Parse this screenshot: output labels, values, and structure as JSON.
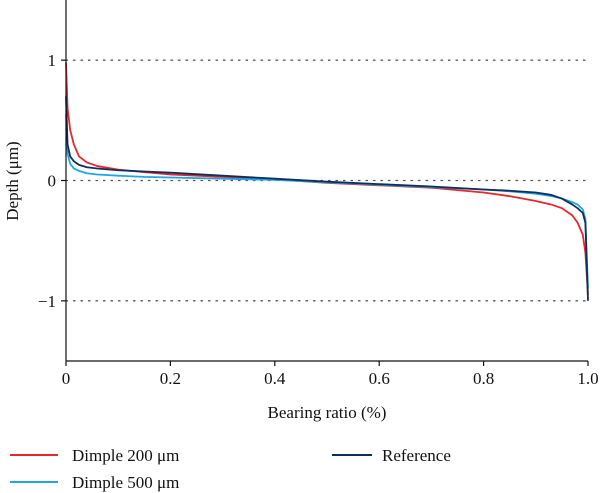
{
  "chart_data": {
    "type": "line",
    "title": "",
    "xlabel": "Bearing ratio (%)",
    "ylabel": "Depth (μm)",
    "xlim": [
      0,
      1
    ],
    "ylim": [
      -1.5,
      1.5
    ],
    "x_ticks": [
      0,
      0.2,
      0.4,
      0.6,
      0.8,
      1.0
    ],
    "x_tick_labels": [
      "0",
      "0.2",
      "0.4",
      "0.6",
      "0.8",
      "1.0"
    ],
    "y_ticks": [
      1,
      0,
      -1
    ],
    "y_tick_labels": [
      "1",
      "0",
      "−1"
    ],
    "reference_lines": [
      1,
      0,
      -1
    ],
    "reference_line_style": "dotted",
    "legend_position": "bottom",
    "series": [
      {
        "name": "Dimple 200 μm",
        "color": "#e8262b",
        "x": [
          0,
          0.003,
          0.008,
          0.015,
          0.025,
          0.04,
          0.06,
          0.1,
          0.15,
          0.2,
          0.3,
          0.4,
          0.5,
          0.6,
          0.7,
          0.8,
          0.85,
          0.9,
          0.93,
          0.95,
          0.97,
          0.98,
          0.99,
          0.995,
          1.0
        ],
        "y": [
          0.98,
          0.6,
          0.42,
          0.3,
          0.2,
          0.15,
          0.12,
          0.09,
          0.07,
          0.05,
          0.03,
          0.01,
          -0.02,
          -0.04,
          -0.06,
          -0.1,
          -0.13,
          -0.17,
          -0.2,
          -0.23,
          -0.29,
          -0.35,
          -0.45,
          -0.6,
          -0.95
        ]
      },
      {
        "name": "Dimple 500 μm",
        "color": "#1ea7e4",
        "x": [
          0,
          0.003,
          0.008,
          0.015,
          0.025,
          0.04,
          0.06,
          0.1,
          0.15,
          0.2,
          0.3,
          0.4,
          0.5,
          0.6,
          0.7,
          0.8,
          0.85,
          0.9,
          0.93,
          0.95,
          0.97,
          0.98,
          0.99,
          0.995,
          1.0
        ],
        "y": [
          0.55,
          0.22,
          0.14,
          0.1,
          0.08,
          0.06,
          0.05,
          0.04,
          0.03,
          0.025,
          0.015,
          0.005,
          -0.015,
          -0.035,
          -0.055,
          -0.075,
          -0.09,
          -0.11,
          -0.13,
          -0.15,
          -0.18,
          -0.2,
          -0.24,
          -0.32,
          -0.9
        ]
      },
      {
        "name": "Reference",
        "color": "#0f2f5a",
        "x": [
          0,
          0.003,
          0.008,
          0.015,
          0.025,
          0.04,
          0.06,
          0.1,
          0.15,
          0.2,
          0.3,
          0.4,
          0.5,
          0.6,
          0.7,
          0.8,
          0.85,
          0.9,
          0.93,
          0.95,
          0.97,
          0.98,
          0.99,
          0.995,
          1.0
        ],
        "y": [
          0.7,
          0.3,
          0.2,
          0.16,
          0.13,
          0.11,
          0.1,
          0.085,
          0.075,
          0.065,
          0.04,
          0.015,
          -0.01,
          -0.03,
          -0.05,
          -0.075,
          -0.085,
          -0.1,
          -0.12,
          -0.15,
          -0.2,
          -0.23,
          -0.27,
          -0.35,
          -1.0
        ]
      }
    ]
  }
}
